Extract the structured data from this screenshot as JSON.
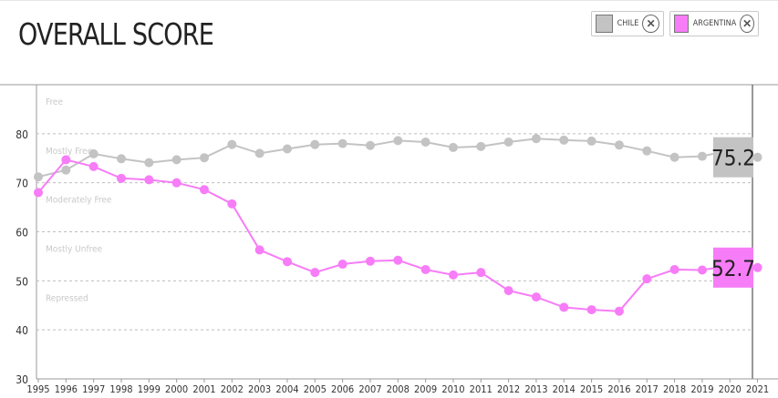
{
  "header": {
    "title": "OVERALL SCORE"
  },
  "legend": [
    {
      "label": "CHILE",
      "color": "#c3c3c3",
      "close_icon": "close-icon"
    },
    {
      "label": "ARGENTINA",
      "color": "#f77cf7",
      "close_icon": "close-icon"
    }
  ],
  "chart_data": {
    "type": "line",
    "title": "OVERALL SCORE",
    "x": [
      "1995",
      "1996",
      "1997",
      "1998",
      "1999",
      "2000",
      "2001",
      "2002",
      "2003",
      "2004",
      "2005",
      "2006",
      "2007",
      "2008",
      "2009",
      "2010",
      "2011",
      "2012",
      "2013",
      "2014",
      "2015",
      "2016",
      "2017",
      "2018",
      "2019",
      "2020",
      "2021"
    ],
    "ylim": [
      30,
      90
    ],
    "yticks": [
      "30",
      "40",
      "50",
      "60",
      "70",
      "80"
    ],
    "grid": true,
    "bands": [
      {
        "label": "Free",
        "from": 80,
        "to": 90
      },
      {
        "label": "Mostly Free",
        "from": 70,
        "to": 80
      },
      {
        "label": "Moderately Free",
        "from": 60,
        "to": 70
      },
      {
        "label": "Mostly Unfree",
        "from": 50,
        "to": 60
      },
      {
        "label": "Repressed",
        "from": 30,
        "to": 50
      }
    ],
    "series": [
      {
        "name": "CHILE",
        "color": "#c3c3c3",
        "values": [
          71.2,
          72.6,
          75.9,
          74.9,
          74.1,
          74.7,
          75.1,
          77.8,
          76.0,
          76.9,
          77.8,
          78.0,
          77.6,
          78.6,
          78.3,
          77.2,
          77.4,
          78.3,
          79.0,
          78.7,
          78.5,
          77.7,
          76.5,
          75.2,
          75.4,
          76.7,
          75.2
        ],
        "final_label": "75.2"
      },
      {
        "name": "ARGENTINA",
        "color": "#f77cf7",
        "values": [
          68.0,
          74.7,
          73.3,
          70.9,
          70.6,
          70.0,
          68.6,
          65.7,
          56.3,
          53.9,
          51.7,
          53.4,
          54.0,
          54.2,
          52.3,
          51.2,
          51.7,
          48.0,
          46.7,
          44.6,
          44.1,
          43.8,
          50.4,
          52.3,
          52.2,
          53.1,
          52.7
        ],
        "final_label": "52.7"
      }
    ]
  }
}
